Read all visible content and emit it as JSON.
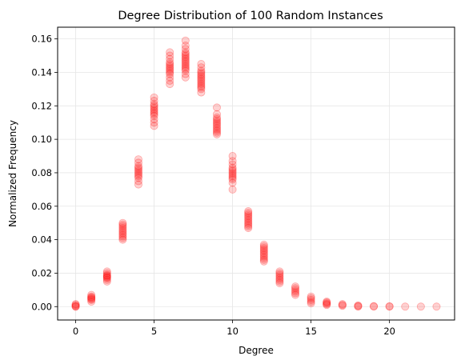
{
  "chart_data": {
    "type": "scatter",
    "title": "Degree Distribution of 100 Random Instances",
    "xlabel": "Degree",
    "ylabel": "Normalized Frequency",
    "xlim": [
      -1.15,
      24.15
    ],
    "ylim": [
      -0.008,
      0.167
    ],
    "xticks": [
      0,
      5,
      10,
      15,
      20
    ],
    "xtick_labels": [
      "0",
      "5",
      "10",
      "15",
      "20"
    ],
    "yticks": [
      0.0,
      0.02,
      0.04,
      0.06,
      0.08,
      0.1,
      0.12,
      0.14,
      0.16
    ],
    "ytick_labels": [
      "0.00",
      "0.02",
      "0.04",
      "0.06",
      "0.08",
      "0.10",
      "0.12",
      "0.14",
      "0.16"
    ],
    "grid": true,
    "marker_color": "#ff0000",
    "marker_alpha": 0.18,
    "series": [
      {
        "points_by_degree": [
          {
            "x": 0,
            "y": [
              0.0,
              0.0005,
              0.001,
              0.0015,
              0.0
            ]
          },
          {
            "x": 1,
            "y": [
              0.003,
              0.004,
              0.005,
              0.006,
              0.007,
              0.0045,
              0.0055
            ]
          },
          {
            "x": 2,
            "y": [
              0.015,
              0.016,
              0.017,
              0.018,
              0.019,
              0.02,
              0.021,
              0.0175,
              0.0185
            ]
          },
          {
            "x": 3,
            "y": [
              0.04,
              0.041,
              0.042,
              0.043,
              0.044,
              0.045,
              0.046,
              0.047,
              0.048,
              0.049,
              0.05
            ]
          },
          {
            "x": 4,
            "y": [
              0.073,
              0.075,
              0.077,
              0.078,
              0.079,
              0.08,
              0.081,
              0.082,
              0.083,
              0.084,
              0.086,
              0.088
            ]
          },
          {
            "x": 5,
            "y": [
              0.108,
              0.11,
              0.112,
              0.114,
              0.115,
              0.116,
              0.117,
              0.118,
              0.119,
              0.12,
              0.121,
              0.123,
              0.125
            ]
          },
          {
            "x": 6,
            "y": [
              0.133,
              0.135,
              0.137,
              0.139,
              0.14,
              0.141,
              0.142,
              0.143,
              0.144,
              0.145,
              0.146,
              0.148,
              0.15,
              0.152
            ]
          },
          {
            "x": 7,
            "y": [
              0.137,
              0.139,
              0.141,
              0.142,
              0.143,
              0.144,
              0.145,
              0.146,
              0.147,
              0.148,
              0.149,
              0.15,
              0.151,
              0.152,
              0.154,
              0.156,
              0.159
            ]
          },
          {
            "x": 8,
            "y": [
              0.128,
              0.13,
              0.131,
              0.132,
              0.133,
              0.134,
              0.135,
              0.136,
              0.137,
              0.138,
              0.139,
              0.14,
              0.141,
              0.143,
              0.145
            ]
          },
          {
            "x": 9,
            "y": [
              0.103,
              0.104,
              0.105,
              0.106,
              0.107,
              0.108,
              0.109,
              0.11,
              0.111,
              0.112,
              0.113,
              0.115,
              0.119
            ]
          },
          {
            "x": 10,
            "y": [
              0.07,
              0.074,
              0.076,
              0.077,
              0.078,
              0.079,
              0.08,
              0.081,
              0.082,
              0.083,
              0.085,
              0.087,
              0.09
            ]
          },
          {
            "x": 11,
            "y": [
              0.047,
              0.048,
              0.049,
              0.05,
              0.051,
              0.052,
              0.053,
              0.054,
              0.055,
              0.056,
              0.057
            ]
          },
          {
            "x": 12,
            "y": [
              0.027,
              0.028,
              0.029,
              0.03,
              0.031,
              0.032,
              0.033,
              0.034,
              0.035,
              0.036,
              0.037
            ]
          },
          {
            "x": 13,
            "y": [
              0.014,
              0.015,
              0.016,
              0.017,
              0.018,
              0.019,
              0.02,
              0.021
            ]
          },
          {
            "x": 14,
            "y": [
              0.007,
              0.008,
              0.009,
              0.01,
              0.011,
              0.012
            ]
          },
          {
            "x": 15,
            "y": [
              0.002,
              0.003,
              0.004,
              0.005,
              0.006
            ]
          },
          {
            "x": 16,
            "y": [
              0.001,
              0.0015,
              0.002,
              0.0025,
              0.003
            ]
          },
          {
            "x": 17,
            "y": [
              0.0005,
              0.001,
              0.0015
            ]
          },
          {
            "x": 18,
            "y": [
              0.0,
              0.0003,
              0.0007
            ]
          },
          {
            "x": 19,
            "y": [
              0.0,
              0.0003
            ]
          },
          {
            "x": 20,
            "y": [
              0.0,
              0.0002
            ]
          },
          {
            "x": 21,
            "y": [
              0.0
            ]
          },
          {
            "x": 22,
            "y": [
              0.0
            ]
          },
          {
            "x": 23,
            "y": [
              0.0
            ]
          }
        ]
      }
    ]
  }
}
